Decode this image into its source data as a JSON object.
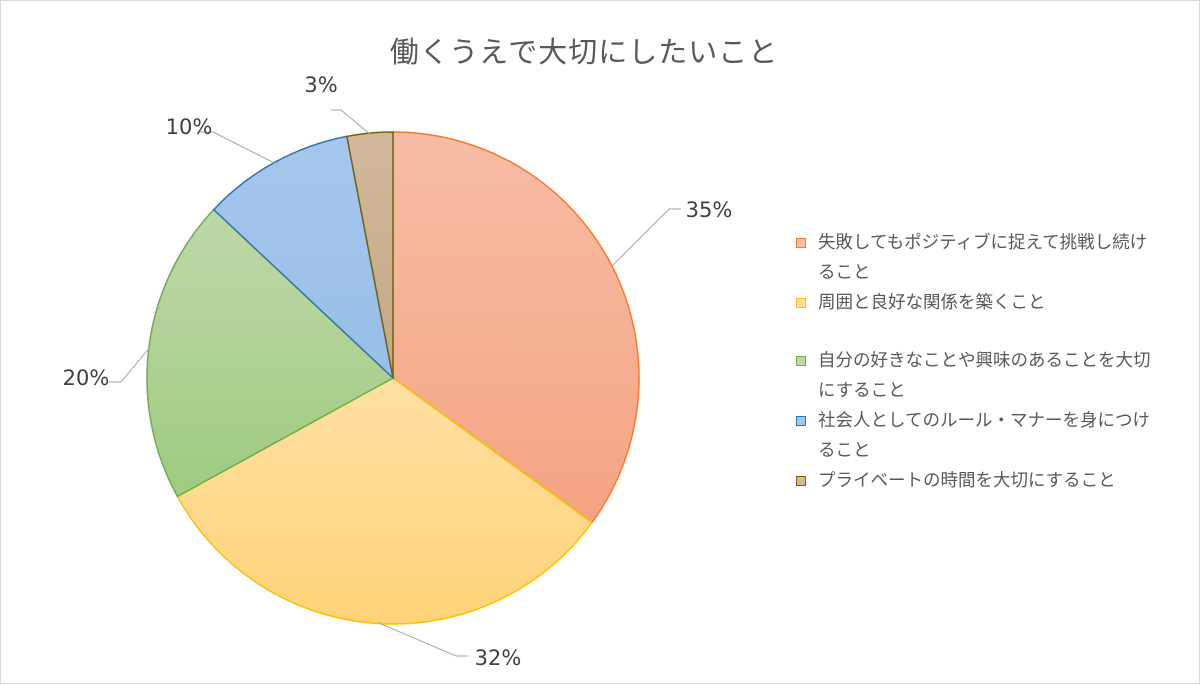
{
  "chart_data": {
    "type": "pie",
    "title": "働くうえで大切にしたいこと",
    "categories": [
      "失敗してもポジティブに捉えて挑戦し続けること",
      "周囲と良好な関係を築くこと",
      "自分の好きなことや興味のあることを大切にすること",
      "社会人としてのルール・マナーを身につけること",
      "プライベートの時間を大切にすること"
    ],
    "values": [
      35,
      32,
      20,
      10,
      3
    ],
    "data_labels": [
      "35%",
      "32%",
      "20%",
      "10%",
      "3%"
    ],
    "colors": [
      {
        "light": "#f7bda6",
        "dark": "#f4a482",
        "stroke": "#ed7d31"
      },
      {
        "light": "#ffe0a3",
        "dark": "#ffd378",
        "stroke": "#ffc000"
      },
      {
        "light": "#bed8a9",
        "dark": "#9fcb80",
        "stroke": "#70ad47"
      },
      {
        "light": "#a6c6eb",
        "dark": "#98bfe7",
        "stroke": "#2e75b6"
      },
      {
        "light": "#d2b99c",
        "dark": "#c4a786",
        "stroke": "#7f6000"
      }
    ],
    "legend_lines": [
      [
        "失敗してもポジティブに捉えて挑戦し続け",
        "ること"
      ],
      [
        "周囲と良好な関係を築くこと"
      ],
      [
        "自分の好きなことや興味のあることを大切",
        "にすること"
      ],
      [
        "社会人としてのルール・マナーを身につけ",
        "ること"
      ],
      [
        "プライベートの時間を大切にすること"
      ]
    ],
    "start_angle": "12 o'clock",
    "direction": "clockwise",
    "legend_position": "right",
    "leader_line_color": "#a6a6a6"
  }
}
